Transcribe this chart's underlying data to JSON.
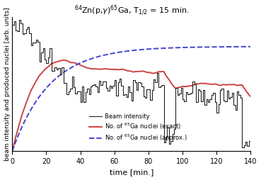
{
  "title": "$^{64}$Zn(p,$\\gamma$)$^{65}$Ga, T$_{1/2}$ = 15 min.",
  "xlabel": "time [min.]",
  "ylabel": "beam intensity and produced nuclei [arb. units]",
  "xlim": [
    0,
    140
  ],
  "ylim": [
    0,
    1.0
  ],
  "legend": [
    {
      "label": "Beam intensity",
      "color": "#222222",
      "ls": "-",
      "lw": 0.8
    },
    {
      "label": "No. of $^{65}$Ga nuclei (exact)",
      "color": "#cc4444",
      "ls": "-",
      "lw": 1.4
    },
    {
      "label": "No. of $^{65}$Ga nuclei (approx.)",
      "color": "#4444cc",
      "ls": "--",
      "lw": 1.4
    }
  ],
  "half_life": 15,
  "bg_color": "#ffffff",
  "xticks": [
    0,
    20,
    40,
    60,
    80,
    100,
    120,
    140
  ]
}
